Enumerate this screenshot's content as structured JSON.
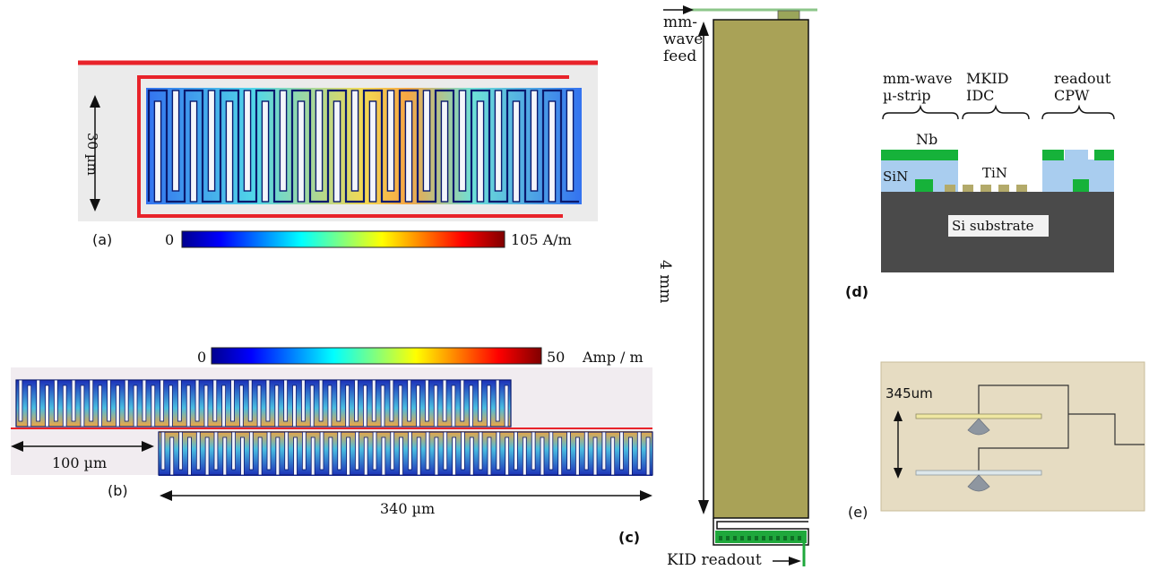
{
  "panel_a": {
    "label": "(a)",
    "dimension": "30 µm",
    "colorbar_min": "0",
    "colorbar_max": "105 A/m"
  },
  "panel_b": {
    "label": "(b)",
    "colorbar_min": "0",
    "colorbar_max": "50",
    "colorbar_unit": "Amp / m",
    "dim_short": "100 µm",
    "dim_long": "340 µm"
  },
  "panel_c": {
    "label": "(c)",
    "feed_label_1": "mm-",
    "feed_label_2": "wave",
    "feed_label_3": "feed",
    "length": "4 mm",
    "readout_label": "KID readout"
  },
  "panel_d": {
    "label": "(d)",
    "col1_line1": "mm-wave",
    "col1_line2": "µ-strip",
    "col2_line1": "MKID",
    "col2_line2": "IDC",
    "col3_line1": "readout",
    "col3_line2": "CPW",
    "nb": "Nb",
    "sin": "SiN",
    "tin": "TiN",
    "substrate": "Si substrate"
  },
  "panel_e": {
    "label": "(e)",
    "dimension": "345um"
  },
  "colors": {
    "red_line": "#e8232a",
    "gold": "#a9a257",
    "nb_green": "#16b23a",
    "sin_blue": "#a9cdef",
    "substrate": "#4a4a4a",
    "panel_bg": "#ebebeb",
    "e_bg": "#e6dcc2"
  }
}
